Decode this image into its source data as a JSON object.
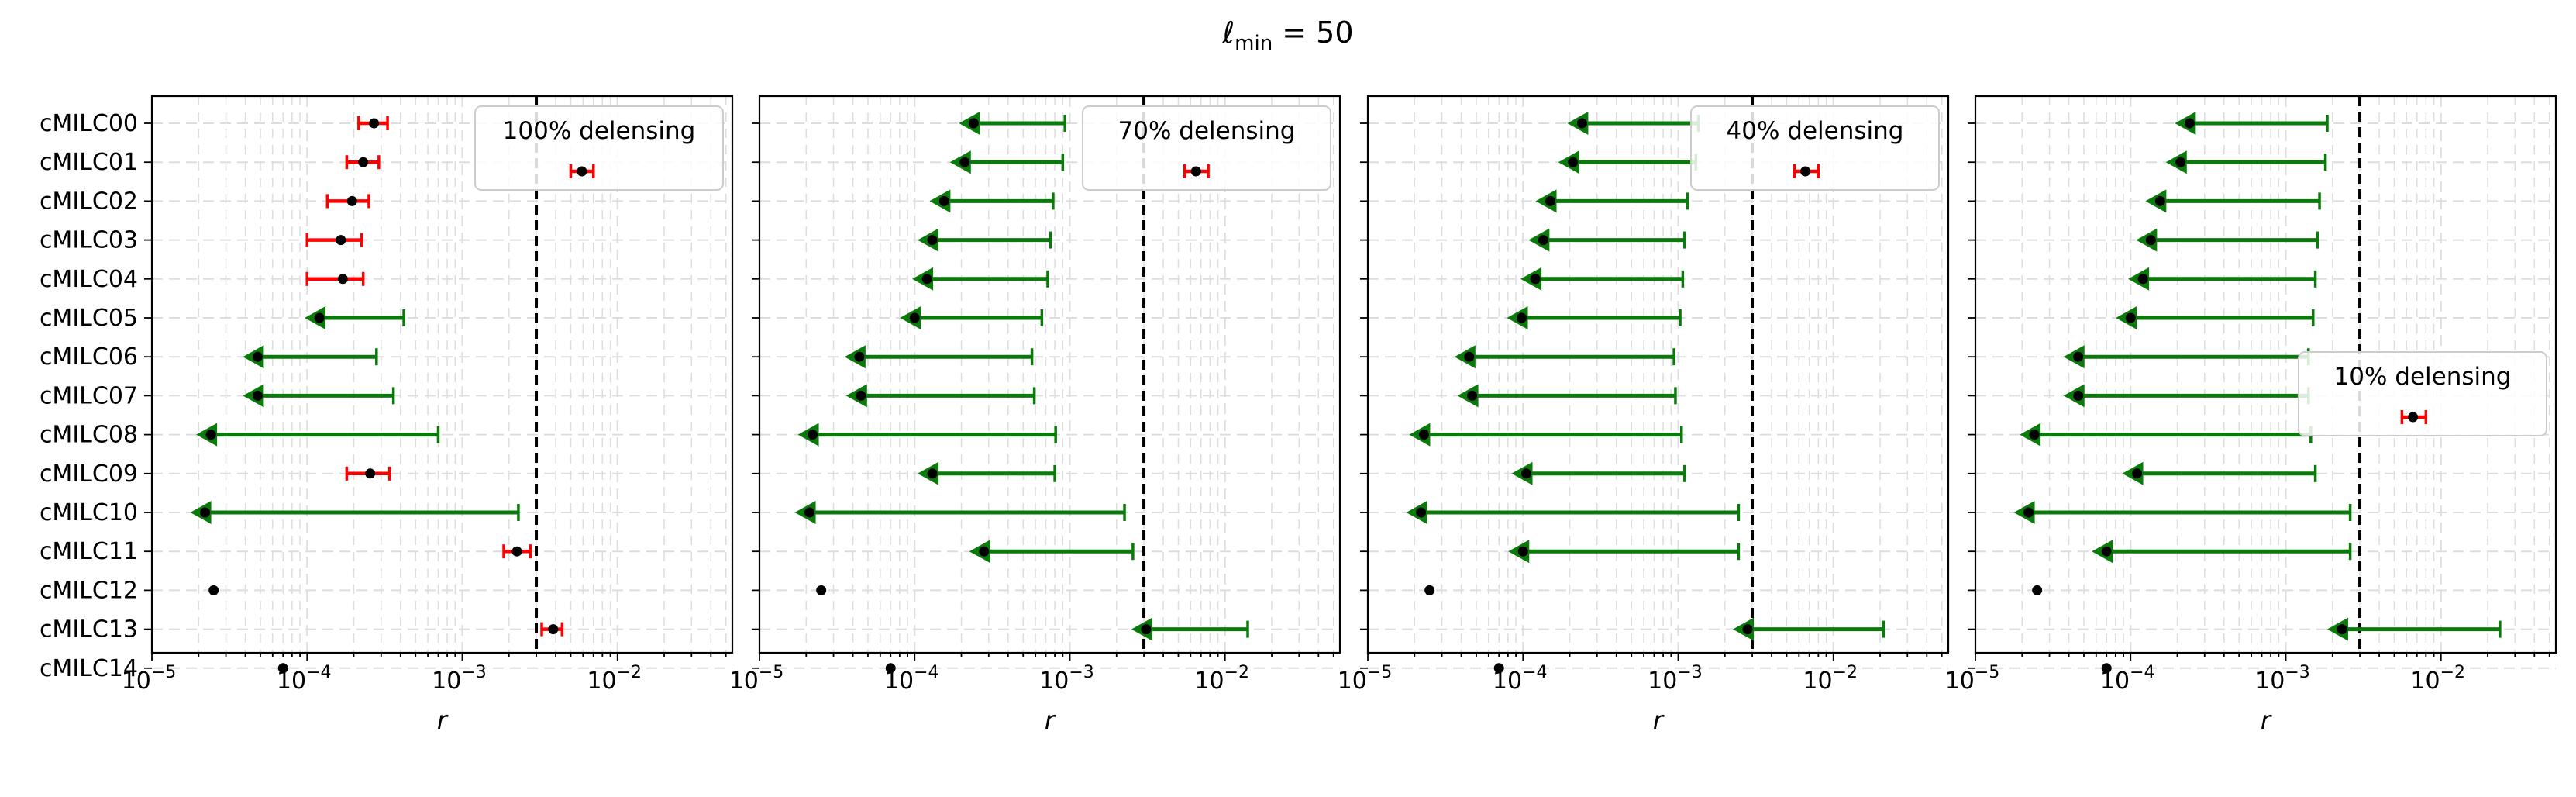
{
  "figure": {
    "title_main": "ℓ",
    "title_sub": "min",
    "title_rest": " = 50"
  },
  "colors": {
    "upper_limit": "#0a7a0a",
    "detection": "#ff0000",
    "point": "#000000",
    "threshold_line": "#000000",
    "grid": "#dddddd"
  },
  "chart_data": [
    {
      "type": "errorbar",
      "legend": "100% delensing",
      "legend_position": "top-right",
      "xlabel": "r",
      "xscale": "log",
      "xlim": [
        1e-05,
        0.055
      ],
      "x_ticks": [
        "10",
        "10",
        "10",
        "10"
      ],
      "x_tick_exponents": [
        "−5",
        "−4",
        "−3",
        "−2"
      ],
      "threshold": 0.003,
      "grid": true,
      "categories": [
        "cMILC00",
        "cMILC01",
        "cMILC02",
        "cMILC03",
        "cMILC04",
        "cMILC05",
        "cMILC06",
        "cMILC07",
        "cMILC08",
        "cMILC09",
        "cMILC10",
        "cMILC11",
        "cMILC12",
        "cMILC13",
        "cMILC14"
      ],
      "points": [
        {
          "kind": "detection",
          "x": 0.00027,
          "lo": 0.000215,
          "hi": 0.00033
        },
        {
          "kind": "detection",
          "x": 0.00023,
          "lo": 0.00018,
          "hi": 0.00029
        },
        {
          "kind": "detection",
          "x": 0.000195,
          "lo": 0.000135,
          "hi": 0.00025
        },
        {
          "kind": "detection",
          "x": 0.000165,
          "lo": 0.0001,
          "hi": 0.000225
        },
        {
          "kind": "detection",
          "x": 0.00017,
          "lo": 0.0001,
          "hi": 0.00023
        },
        {
          "kind": "upper",
          "x": 0.00012,
          "hi": 0.00042
        },
        {
          "kind": "upper",
          "x": 4.8e-05,
          "hi": 0.00028
        },
        {
          "kind": "upper",
          "x": 4.8e-05,
          "hi": 0.00036
        },
        {
          "kind": "upper",
          "x": 2.4e-05,
          "hi": 0.0007
        },
        {
          "kind": "detection",
          "x": 0.000255,
          "lo": 0.00018,
          "hi": 0.00034
        },
        {
          "kind": "upper",
          "x": 2.2e-05,
          "hi": 0.0023
        },
        {
          "kind": "detection",
          "x": 0.00225,
          "lo": 0.00185,
          "hi": 0.00275
        },
        {
          "kind": "point",
          "x": 2.5e-05
        },
        {
          "kind": "detection",
          "x": 0.00385,
          "lo": 0.00325,
          "hi": 0.0044
        },
        {
          "kind": "point",
          "x": 7e-05
        }
      ],
      "legend_point": {
        "x": 0.0059,
        "lo": 0.005,
        "hi": 0.007
      }
    },
    {
      "type": "errorbar",
      "legend": "70% delensing",
      "legend_position": "top-right",
      "xlabel": "r",
      "xscale": "log",
      "xlim": [
        1e-05,
        0.055
      ],
      "x_ticks": [
        "10",
        "10",
        "10",
        "10"
      ],
      "x_tick_exponents": [
        "−5",
        "−4",
        "−3",
        "−2"
      ],
      "threshold": 0.003,
      "grid": true,
      "categories": [
        "cMILC00",
        "cMILC01",
        "cMILC02",
        "cMILC03",
        "cMILC04",
        "cMILC05",
        "cMILC06",
        "cMILC07",
        "cMILC08",
        "cMILC09",
        "cMILC10",
        "cMILC11",
        "cMILC12",
        "cMILC13",
        "cMILC14"
      ],
      "points": [
        {
          "kind": "upper",
          "x": 0.00024,
          "hi": 0.00093
        },
        {
          "kind": "upper",
          "x": 0.00021,
          "hi": 0.0009
        },
        {
          "kind": "upper",
          "x": 0.000155,
          "hi": 0.00078
        },
        {
          "kind": "upper",
          "x": 0.00013,
          "hi": 0.00075
        },
        {
          "kind": "upper",
          "x": 0.00012,
          "hi": 0.00072
        },
        {
          "kind": "upper",
          "x": 0.0001,
          "hi": 0.00066
        },
        {
          "kind": "upper",
          "x": 4.4e-05,
          "hi": 0.00057
        },
        {
          "kind": "upper",
          "x": 4.5e-05,
          "hi": 0.00059
        },
        {
          "kind": "upper",
          "x": 2.2e-05,
          "hi": 0.00081
        },
        {
          "kind": "upper",
          "x": 0.00013,
          "hi": 0.0008
        },
        {
          "kind": "upper",
          "x": 2.1e-05,
          "hi": 0.00225
        },
        {
          "kind": "upper",
          "x": 0.00028,
          "hi": 0.00255
        },
        {
          "kind": "point",
          "x": 2.5e-05
        },
        {
          "kind": "upper",
          "x": 0.0031,
          "hi": 0.014
        },
        {
          "kind": "point",
          "x": 7e-05
        }
      ],
      "legend_point": {
        "x": 0.0065,
        "lo": 0.0055,
        "hi": 0.0078
      }
    },
    {
      "type": "errorbar",
      "legend": "40% delensing",
      "legend_position": "top-right",
      "xlabel": "r",
      "xscale": "log",
      "xlim": [
        1e-05,
        0.055
      ],
      "x_ticks": [
        "10",
        "10",
        "10",
        "10"
      ],
      "x_tick_exponents": [
        "−5",
        "−4",
        "−3",
        "−2"
      ],
      "threshold": 0.003,
      "grid": true,
      "categories": [
        "cMILC00",
        "cMILC01",
        "cMILC02",
        "cMILC03",
        "cMILC04",
        "cMILC05",
        "cMILC06",
        "cMILC07",
        "cMILC08",
        "cMILC09",
        "cMILC10",
        "cMILC11",
        "cMILC12",
        "cMILC13",
        "cMILC14"
      ],
      "points": [
        {
          "kind": "upper",
          "x": 0.00024,
          "hi": 0.00135
        },
        {
          "kind": "upper",
          "x": 0.00021,
          "hi": 0.0013
        },
        {
          "kind": "upper",
          "x": 0.00015,
          "hi": 0.00115
        },
        {
          "kind": "upper",
          "x": 0.000135,
          "hi": 0.0011
        },
        {
          "kind": "upper",
          "x": 0.00012,
          "hi": 0.00107
        },
        {
          "kind": "upper",
          "x": 9.8e-05,
          "hi": 0.00103
        },
        {
          "kind": "upper",
          "x": 4.5e-05,
          "hi": 0.00094
        },
        {
          "kind": "upper",
          "x": 4.7e-05,
          "hi": 0.00096
        },
        {
          "kind": "upper",
          "x": 2.3e-05,
          "hi": 0.00105
        },
        {
          "kind": "upper",
          "x": 0.000105,
          "hi": 0.0011
        },
        {
          "kind": "upper",
          "x": 2.2e-05,
          "hi": 0.00245
        },
        {
          "kind": "upper",
          "x": 0.0001,
          "hi": 0.00245
        },
        {
          "kind": "point",
          "x": 2.5e-05
        },
        {
          "kind": "upper",
          "x": 0.0028,
          "hi": 0.021
        },
        {
          "kind": "point",
          "x": 7e-05
        }
      ],
      "legend_point": {
        "x": 0.0066,
        "lo": 0.0056,
        "hi": 0.008
      }
    },
    {
      "type": "errorbar",
      "legend": "10% delensing",
      "legend_position": "center-right",
      "xlabel": "r",
      "xscale": "log",
      "xlim": [
        1e-05,
        0.055
      ],
      "x_ticks": [
        "10",
        "10",
        "10",
        "10"
      ],
      "x_tick_exponents": [
        "−5",
        "−4",
        "−3",
        "−2"
      ],
      "threshold": 0.003,
      "grid": true,
      "categories": [
        "cMILC00",
        "cMILC01",
        "cMILC02",
        "cMILC03",
        "cMILC04",
        "cMILC05",
        "cMILC06",
        "cMILC07",
        "cMILC08",
        "cMILC09",
        "cMILC10",
        "cMILC11",
        "cMILC12",
        "cMILC13",
        "cMILC14"
      ],
      "points": [
        {
          "kind": "upper",
          "x": 0.00024,
          "hi": 0.00185
        },
        {
          "kind": "upper",
          "x": 0.00021,
          "hi": 0.0018
        },
        {
          "kind": "upper",
          "x": 0.000155,
          "hi": 0.00165
        },
        {
          "kind": "upper",
          "x": 0.000135,
          "hi": 0.0016
        },
        {
          "kind": "upper",
          "x": 0.00012,
          "hi": 0.00155
        },
        {
          "kind": "upper",
          "x": 0.0001,
          "hi": 0.0015
        },
        {
          "kind": "upper",
          "x": 4.6e-05,
          "hi": 0.0014
        },
        {
          "kind": "upper",
          "x": 4.6e-05,
          "hi": 0.0014
        },
        {
          "kind": "upper",
          "x": 2.4e-05,
          "hi": 0.00145
        },
        {
          "kind": "upper",
          "x": 0.00011,
          "hi": 0.00155
        },
        {
          "kind": "upper",
          "x": 2.2e-05,
          "hi": 0.0026
        },
        {
          "kind": "upper",
          "x": 7e-05,
          "hi": 0.0026
        },
        {
          "kind": "point",
          "x": 2.5e-05
        },
        {
          "kind": "upper",
          "x": 0.0023,
          "hi": 0.024
        },
        {
          "kind": "point",
          "x": 7e-05
        }
      ],
      "legend_point": {
        "x": 0.0066,
        "lo": 0.0056,
        "hi": 0.008
      }
    }
  ]
}
